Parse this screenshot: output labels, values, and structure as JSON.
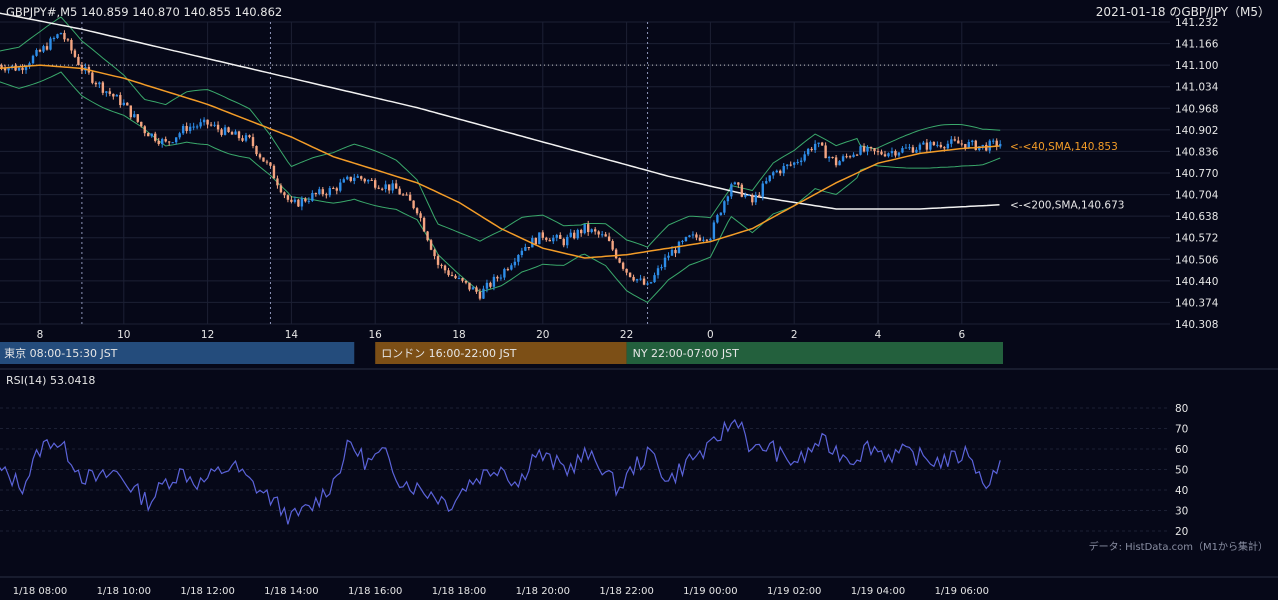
{
  "header": {
    "symbol_line": "GBPJPY#,M5 140.859 140.870 140.855 140.862",
    "date_title": "2021-01-18 のGBP/JPY（M5）"
  },
  "colors": {
    "background": "#060818",
    "bull": "#2e8de8",
    "bear": "#f4a582",
    "sma40": "#f39c28",
    "sma200": "#f2f2f2",
    "bollinger": "#3aa86b",
    "rsi": "#5b63d9",
    "grid": "#1c2034",
    "tokyo": "#244c7c",
    "london": "#7c4f16",
    "ny": "#23603d"
  },
  "chart_data": [
    {
      "type": "candlestick",
      "title": "",
      "x_ticks": [
        "8",
        "10",
        "12",
        "14",
        "16",
        "18",
        "20",
        "22",
        "0",
        "2",
        "4",
        "6"
      ],
      "y_ticks": [
        "141.232",
        "141.166",
        "141.100",
        "141.034",
        "140.968",
        "140.902",
        "140.836",
        "140.770",
        "140.704",
        "140.638",
        "140.572",
        "140.506",
        "140.440",
        "140.374",
        "140.308"
      ],
      "ylim": [
        140.308,
        141.232
      ],
      "x_range_hours": [
        7.0,
        30.95
      ],
      "overlays": [
        {
          "name": "40,SMA",
          "label": "<-<40,SMA,140.853",
          "last_value": 140.853
        },
        {
          "name": "200,SMA",
          "label": "<-<200,SMA,140.673",
          "last_value": 140.673
        },
        {
          "name": "Bollinger"
        }
      ],
      "reference_level": 141.1,
      "session_markers_hours": [
        9,
        13.5,
        22.5
      ],
      "path_hours": [
        7.0,
        7.5,
        8.0,
        8.5,
        9.0,
        9.5,
        10.0,
        10.5,
        11.0,
        11.5,
        12.0,
        12.5,
        13.0,
        13.5,
        14.0,
        14.5,
        15.0,
        15.5,
        16.0,
        16.5,
        17.0,
        17.5,
        18.0,
        18.5,
        19.0,
        19.5,
        20.0,
        20.5,
        21.0,
        21.5,
        22.0,
        22.5,
        23.0,
        23.5,
        24.0,
        24.5,
        25.0,
        25.5,
        26.0,
        26.5,
        27.0,
        27.5,
        28.0,
        28.5,
        29.0,
        29.5,
        30.0,
        30.5,
        30.95
      ],
      "path_close": [
        141.1,
        141.09,
        141.14,
        141.2,
        141.09,
        141.03,
        140.98,
        140.9,
        140.86,
        140.91,
        140.92,
        140.89,
        140.87,
        140.78,
        140.67,
        140.7,
        140.72,
        140.76,
        140.74,
        140.72,
        140.66,
        140.49,
        140.44,
        140.4,
        140.46,
        140.54,
        140.58,
        140.56,
        140.6,
        140.57,
        140.47,
        140.42,
        140.52,
        140.57,
        140.58,
        140.74,
        140.68,
        140.77,
        140.8,
        140.86,
        140.8,
        140.84,
        140.83,
        140.84,
        140.85,
        140.86,
        140.86,
        140.85,
        140.862
      ],
      "sma40_hours": [
        7.0,
        8.0,
        9.0,
        10.0,
        11.0,
        12.0,
        13.0,
        14.0,
        15.0,
        16.0,
        17.0,
        18.0,
        19.0,
        20.0,
        21.0,
        22.0,
        23.0,
        24.0,
        25.0,
        26.0,
        27.0,
        28.0,
        29.0,
        30.0,
        30.95
      ],
      "sma40": [
        141.09,
        141.1,
        141.09,
        141.06,
        141.02,
        140.98,
        140.93,
        140.88,
        140.82,
        140.78,
        140.74,
        140.68,
        140.6,
        140.54,
        140.51,
        140.52,
        140.54,
        140.56,
        140.6,
        140.67,
        140.74,
        140.8,
        140.83,
        140.845,
        140.853
      ],
      "sma200_hours": [
        7.0,
        9.0,
        11.0,
        13.0,
        15.0,
        17.0,
        19.0,
        21.0,
        23.0,
        25.0,
        27.0,
        29.0,
        30.95
      ],
      "sma200": [
        141.26,
        141.21,
        141.15,
        141.09,
        141.03,
        140.97,
        140.9,
        140.83,
        140.76,
        140.7,
        140.66,
        140.66,
        140.673
      ]
    },
    {
      "type": "line",
      "title": "RSI(14) 53.0418",
      "series": [
        {
          "name": "RSI(14)",
          "last_value": 53.0418
        }
      ],
      "y_ticks": [
        "80",
        "70",
        "60",
        "50",
        "40",
        "30",
        "20"
      ],
      "ylim": [
        15,
        85
      ],
      "path_hours": [
        7.0,
        7.6,
        8.0,
        8.3,
        8.7,
        9.0,
        9.4,
        9.8,
        10.2,
        10.6,
        11.0,
        11.4,
        11.8,
        12.2,
        12.6,
        13.0,
        13.5,
        14.0,
        14.5,
        15.0,
        15.4,
        15.8,
        16.2,
        16.6,
        17.0,
        17.4,
        17.8,
        18.2,
        18.6,
        19.0,
        19.4,
        19.8,
        20.2,
        20.6,
        21.0,
        21.4,
        21.8,
        22.2,
        22.6,
        23.0,
        23.5,
        24.0,
        24.3,
        24.7,
        25.0,
        25.4,
        25.8,
        26.2,
        26.6,
        27.0,
        27.4,
        27.8,
        28.2,
        28.6,
        29.0,
        29.4,
        29.8,
        30.2,
        30.5,
        30.95
      ],
      "path_values": [
        50,
        42,
        60,
        65,
        57,
        47,
        45,
        49,
        41,
        34,
        44,
        49,
        43,
        48,
        52,
        44,
        36,
        26,
        32,
        44,
        63,
        53,
        58,
        45,
        41,
        38,
        33,
        43,
        48,
        52,
        42,
        58,
        54,
        50,
        57,
        52,
        40,
        52,
        58,
        44,
        55,
        60,
        69,
        75,
        58,
        62,
        54,
        55,
        64,
        59,
        55,
        62,
        57,
        58,
        56,
        54,
        55,
        59,
        42,
        53.0418
      ]
    }
  ],
  "sessions": [
    {
      "label": "東京 08:00-15:30 JST",
      "start_hour": 7.0,
      "end_hour": 15.5
    },
    {
      "label": "ロンドン 16:00-22:00 JST",
      "start_hour": 16.0,
      "end_hour": 22.0
    },
    {
      "label": "NY 22:00-07:00 JST",
      "start_hour": 22.0,
      "end_hour": 31.0
    }
  ],
  "time_axis": {
    "ticks": [
      "1/18 08:00",
      "1/18 10:00",
      "1/18 12:00",
      "1/18 14:00",
      "1/18 16:00",
      "1/18 18:00",
      "1/18 20:00",
      "1/18 22:00",
      "1/19 00:00",
      "1/19 02:00",
      "1/19 04:00",
      "1/19 06:00"
    ]
  },
  "source_note": "データ: HistData.com（M1から集計）"
}
